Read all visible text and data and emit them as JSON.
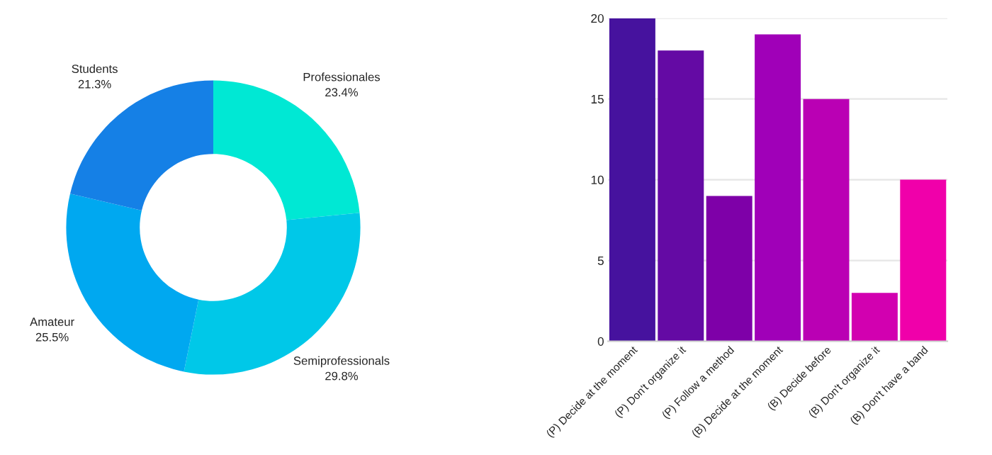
{
  "chart_data": [
    {
      "type": "donut",
      "categories": [
        "Professionales",
        "Semiprofessionals",
        "Amateur",
        "Students"
      ],
      "values": [
        23.4,
        29.8,
        25.5,
        21.3
      ],
      "colors": [
        "#00e8d4",
        "#00c8e8",
        "#00a8f0",
        "#1580e6"
      ],
      "value_labels": [
        "23.4%",
        "29.8%",
        "25.5%",
        "21.3%"
      ]
    },
    {
      "type": "bar",
      "categories": [
        "(P) Decide at the moment",
        "(P) Don't organize it",
        "(P) Follow a method",
        "(B) Decide at the moment",
        "(B) Decide before",
        "(B) Don't organize it",
        "(B) Don't have a band"
      ],
      "values": [
        20,
        18,
        9,
        19,
        15,
        3,
        10
      ],
      "colors": [
        "#46129e",
        "#640aa4",
        "#7e00a8",
        "#a000b8",
        "#ba00b4",
        "#d200b0",
        "#f000aa"
      ],
      "ylim": [
        0,
        20
      ],
      "yticks": [
        0,
        5,
        10,
        15,
        20
      ],
      "grid": "y"
    }
  ]
}
